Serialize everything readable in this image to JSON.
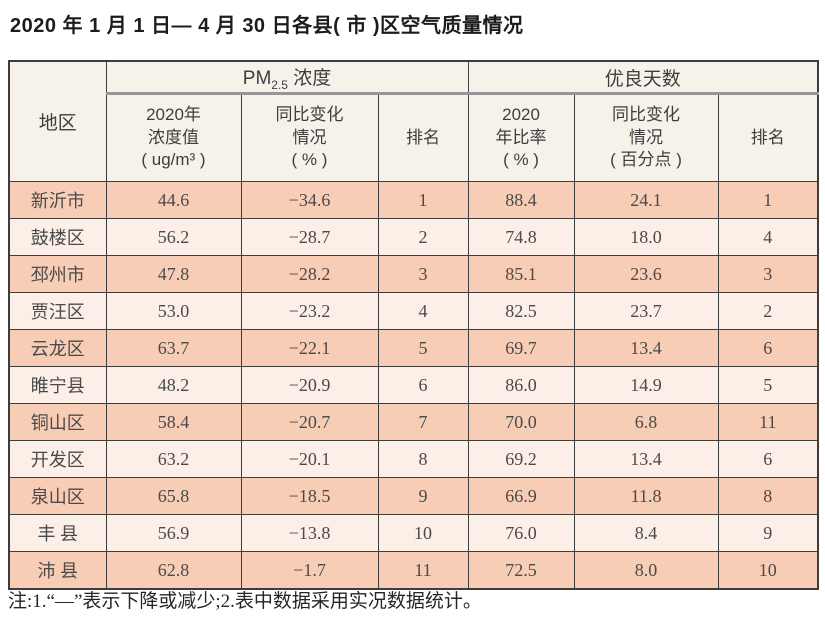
{
  "chart_data": {
    "type": "table",
    "title": "2020 年 1 月 1 日— 4 月 30 日各县( 市 )区空气质量情况",
    "region_header": "地区",
    "groups": [
      {
        "name": "PM2.5浓度",
        "label_main": "PM",
        "label_sub": "2.5",
        "label_rest": " 浓度"
      },
      {
        "name": "优良天数",
        "label": "优良天数"
      }
    ],
    "sub_headers": [
      "2020年\n浓度值\n( ug/m³ )",
      "同比变化\n情况\n( % )",
      "排名",
      "2020\n年比率\n( % )",
      "同比变化\n情况\n( 百分点 )",
      "排名"
    ],
    "rows": [
      [
        "新沂市",
        "44.6",
        "−34.6",
        "1",
        "88.4",
        "24.1",
        "1"
      ],
      [
        "鼓楼区",
        "56.2",
        "−28.7",
        "2",
        "74.8",
        "18.0",
        "4"
      ],
      [
        "邳州市",
        "47.8",
        "−28.2",
        "3",
        "85.1",
        "23.6",
        "3"
      ],
      [
        "贾汪区",
        "53.0",
        "−23.2",
        "4",
        "82.5",
        "23.7",
        "2"
      ],
      [
        "云龙区",
        "63.7",
        "−22.1",
        "5",
        "69.7",
        "13.4",
        "6"
      ],
      [
        "睢宁县",
        "48.2",
        "−20.9",
        "6",
        "86.0",
        "14.9",
        "5"
      ],
      [
        "铜山区",
        "58.4",
        "−20.7",
        "7",
        "70.0",
        "6.8",
        "11"
      ],
      [
        "开发区",
        "63.2",
        "−20.1",
        "8",
        "69.2",
        "13.4",
        "6"
      ],
      [
        "泉山区",
        "65.8",
        "−18.5",
        "9",
        "66.9",
        "11.8",
        "8"
      ],
      [
        "丰 县",
        "56.9",
        "−13.8",
        "10",
        "76.0",
        "8.4",
        "9"
      ],
      [
        "沛 县",
        "62.8",
        "−1.7",
        "11",
        "72.5",
        "8.0",
        "10"
      ]
    ]
  },
  "note": "注:1.“—”表示下降或减少;2.表中数据采用实况数据统计。",
  "colors": {
    "row_odd": "#f8cdb6",
    "row_even": "#fbefe8",
    "header_bg": "#f6f2e9",
    "border": "#3d3d3d",
    "cell_text": "#4a4a4a"
  }
}
